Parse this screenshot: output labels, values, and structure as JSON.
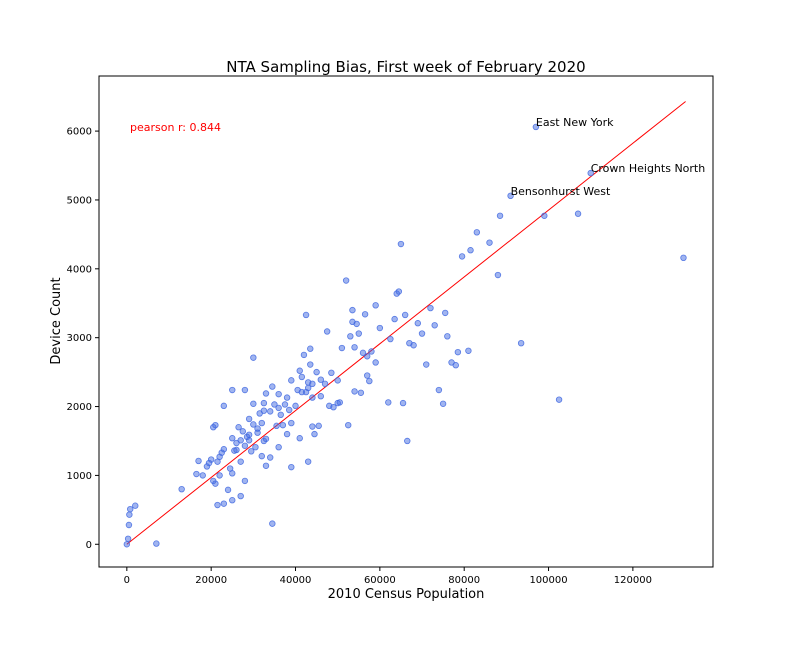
{
  "chart_data": {
    "type": "scatter",
    "title": "NTA Sampling Bias, First week of February 2020",
    "xlabel": "2010 Census Population",
    "ylabel": "Device Count",
    "xlim": [
      -6600,
      139000
    ],
    "ylim": [
      -330,
      6800
    ],
    "xticks": [
      0,
      20000,
      40000,
      60000,
      80000,
      100000,
      120000
    ],
    "xtick_labels": [
      "0",
      "20000",
      "40000",
      "60000",
      "80000",
      "100000",
      "120000"
    ],
    "yticks": [
      0,
      1000,
      2000,
      3000,
      4000,
      5000,
      6000
    ],
    "ytick_labels": [
      "0",
      "1000",
      "2000",
      "3000",
      "4000",
      "5000",
      "6000"
    ],
    "grid": false,
    "colors": {
      "points": "#4169e1",
      "fit_line": "#ff0000",
      "stat_text": "#ff0000"
    },
    "stat_label": "pearson r: 0.844",
    "fit_line": {
      "x": [
        0,
        132500
      ],
      "y": [
        0,
        6430
      ]
    },
    "annotations": [
      {
        "text": "East New York",
        "x": 97000,
        "y": 6060
      },
      {
        "text": "Crown Heights North",
        "x": 110000,
        "y": 5390
      },
      {
        "text": "Bensonhurst West",
        "x": 91000,
        "y": 5060
      }
    ],
    "points": [
      [
        0,
        0
      ],
      [
        300,
        80
      ],
      [
        500,
        280
      ],
      [
        600,
        430
      ],
      [
        800,
        510
      ],
      [
        2000,
        560
      ],
      [
        7000,
        10
      ],
      [
        13000,
        800
      ],
      [
        16500,
        1020
      ],
      [
        17000,
        1210
      ],
      [
        18000,
        1000
      ],
      [
        19000,
        1130
      ],
      [
        19500,
        1180
      ],
      [
        20000,
        1230
      ],
      [
        20500,
        1700
      ],
      [
        20500,
        920
      ],
      [
        21000,
        1730
      ],
      [
        21000,
        880
      ],
      [
        21500,
        1200
      ],
      [
        21500,
        570
      ],
      [
        22000,
        1000
      ],
      [
        22000,
        1270
      ],
      [
        22500,
        1330
      ],
      [
        23000,
        1380
      ],
      [
        23000,
        2010
      ],
      [
        23000,
        590
      ],
      [
        24000,
        790
      ],
      [
        24500,
        1100
      ],
      [
        25000,
        1540
      ],
      [
        25000,
        1030
      ],
      [
        25000,
        640
      ],
      [
        25000,
        2240
      ],
      [
        25500,
        1360
      ],
      [
        26000,
        1370
      ],
      [
        26000,
        1470
      ],
      [
        26500,
        1700
      ],
      [
        27000,
        1510
      ],
      [
        27000,
        1200
      ],
      [
        27000,
        700
      ],
      [
        27500,
        1640
      ],
      [
        28000,
        2240
      ],
      [
        28000,
        920
      ],
      [
        28000,
        1430
      ],
      [
        28500,
        1560
      ],
      [
        29000,
        1510
      ],
      [
        29000,
        1820
      ],
      [
        29000,
        1590
      ],
      [
        29500,
        1350
      ],
      [
        30000,
        1740
      ],
      [
        30000,
        2040
      ],
      [
        30000,
        2710
      ],
      [
        30500,
        1410
      ],
      [
        31000,
        1620
      ],
      [
        31000,
        1680
      ],
      [
        31500,
        1900
      ],
      [
        32000,
        1280
      ],
      [
        32000,
        1760
      ],
      [
        32500,
        2050
      ],
      [
        32500,
        1500
      ],
      [
        32500,
        1940
      ],
      [
        33000,
        1140
      ],
      [
        33000,
        2190
      ],
      [
        33000,
        1530
      ],
      [
        34000,
        1930
      ],
      [
        34000,
        1260
      ],
      [
        34500,
        2290
      ],
      [
        34500,
        300
      ],
      [
        35000,
        2030
      ],
      [
        35500,
        1720
      ],
      [
        36000,
        1980
      ],
      [
        36000,
        2180
      ],
      [
        36000,
        1410
      ],
      [
        36500,
        1880
      ],
      [
        37000,
        1730
      ],
      [
        37500,
        2030
      ],
      [
        38000,
        1600
      ],
      [
        38000,
        2130
      ],
      [
        38500,
        1950
      ],
      [
        39000,
        1120
      ],
      [
        39000,
        2380
      ],
      [
        39000,
        1760
      ],
      [
        40000,
        2010
      ],
      [
        40500,
        2240
      ],
      [
        41000,
        1540
      ],
      [
        41000,
        2520
      ],
      [
        41500,
        2430
      ],
      [
        41500,
        2210
      ],
      [
        42000,
        2750
      ],
      [
        42500,
        3330
      ],
      [
        42500,
        2210
      ],
      [
        43000,
        2270
      ],
      [
        43000,
        1200
      ],
      [
        43000,
        2350
      ],
      [
        43500,
        2840
      ],
      [
        43500,
        2610
      ],
      [
        44000,
        2330
      ],
      [
        44000,
        2130
      ],
      [
        44000,
        1710
      ],
      [
        44500,
        1600
      ],
      [
        45000,
        2500
      ],
      [
        45500,
        1720
      ],
      [
        46000,
        2390
      ],
      [
        46000,
        2150
      ],
      [
        47000,
        2330
      ],
      [
        47500,
        3090
      ],
      [
        48000,
        2010
      ],
      [
        48500,
        2490
      ],
      [
        49000,
        1990
      ],
      [
        50000,
        2380
      ],
      [
        50000,
        2050
      ],
      [
        50500,
        2060
      ],
      [
        51000,
        2850
      ],
      [
        52000,
        3830
      ],
      [
        52500,
        1730
      ],
      [
        53000,
        3020
      ],
      [
        53500,
        3230
      ],
      [
        53500,
        3400
      ],
      [
        54000,
        2860
      ],
      [
        54000,
        2220
      ],
      [
        54500,
        3200
      ],
      [
        55000,
        3060
      ],
      [
        55500,
        2200
      ],
      [
        56000,
        2780
      ],
      [
        56500,
        3340
      ],
      [
        57000,
        2450
      ],
      [
        57000,
        2730
      ],
      [
        57500,
        2370
      ],
      [
        58000,
        2800
      ],
      [
        59000,
        3470
      ],
      [
        59000,
        2640
      ],
      [
        60000,
        3140
      ],
      [
        62000,
        2060
      ],
      [
        62500,
        2980
      ],
      [
        63500,
        3270
      ],
      [
        64000,
        3640
      ],
      [
        64500,
        3670
      ],
      [
        65000,
        4360
      ],
      [
        65500,
        2050
      ],
      [
        66000,
        3330
      ],
      [
        66500,
        1500
      ],
      [
        67000,
        2920
      ],
      [
        68000,
        2890
      ],
      [
        69000,
        3210
      ],
      [
        70000,
        3060
      ],
      [
        71000,
        2610
      ],
      [
        72000,
        3430
      ],
      [
        73000,
        3180
      ],
      [
        74000,
        2240
      ],
      [
        75000,
        2040
      ],
      [
        75500,
        3360
      ],
      [
        76000,
        3020
      ],
      [
        77000,
        2640
      ],
      [
        78000,
        2600
      ],
      [
        78500,
        2790
      ],
      [
        79500,
        4180
      ],
      [
        81000,
        2810
      ],
      [
        81500,
        4270
      ],
      [
        83000,
        4530
      ],
      [
        86000,
        4380
      ],
      [
        88000,
        3910
      ],
      [
        88500,
        4770
      ],
      [
        91000,
        5060
      ],
      [
        93500,
        2920
      ],
      [
        97000,
        6060
      ],
      [
        99000,
        4770
      ],
      [
        102500,
        2100
      ],
      [
        107000,
        4800
      ],
      [
        110000,
        5390
      ],
      [
        132000,
        4160
      ]
    ]
  }
}
